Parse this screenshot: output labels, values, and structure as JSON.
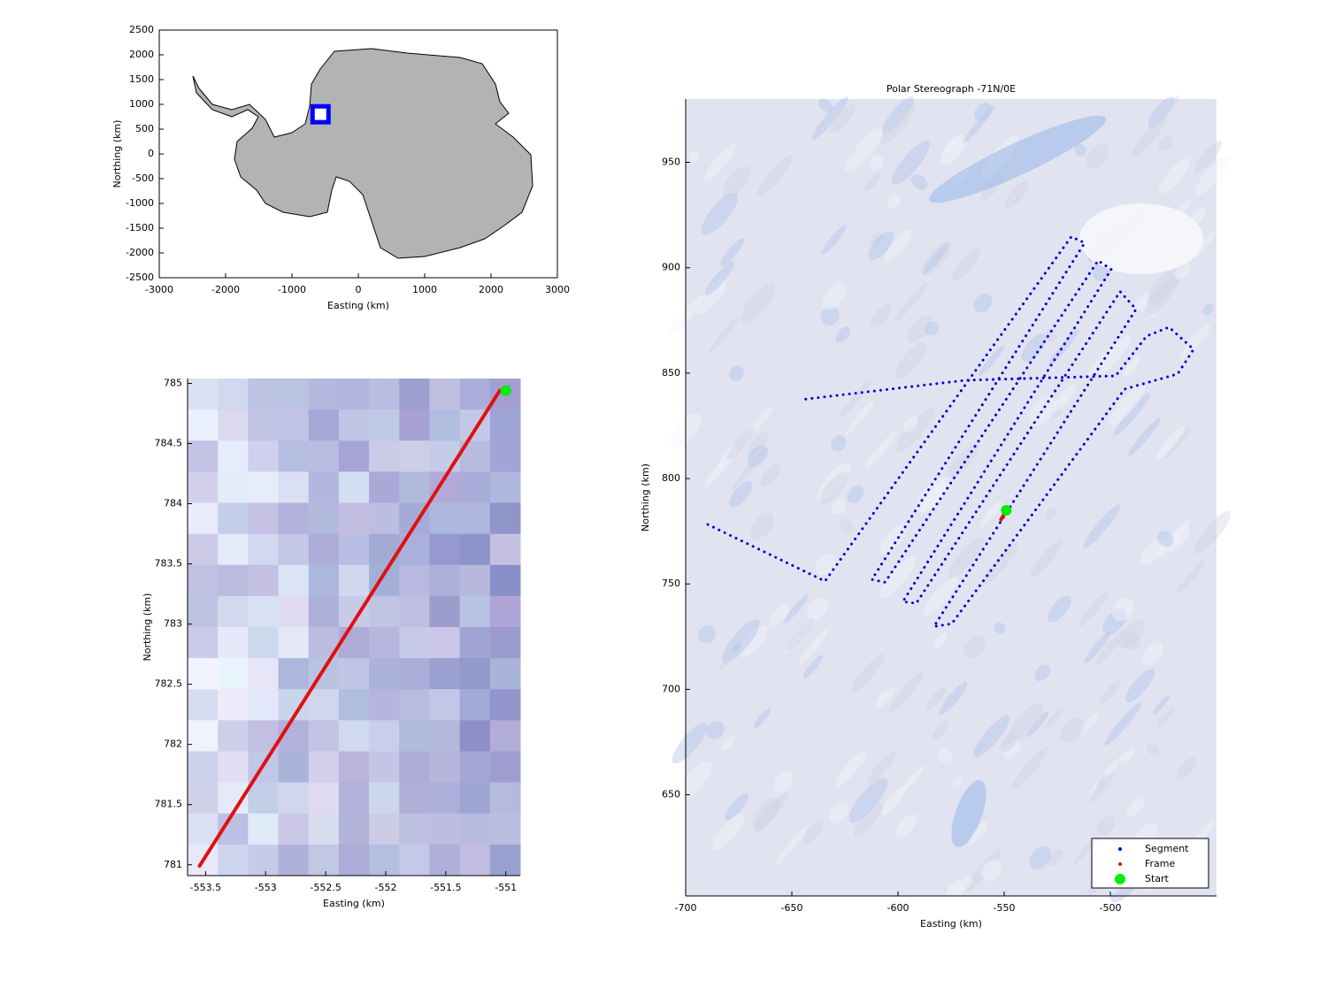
{
  "chart_data": [
    {
      "type": "map",
      "xlabel": "Easting (km)",
      "ylabel": "Northing (km)",
      "xlim": [
        -3000,
        3000
      ],
      "xticks": [
        -3000,
        -2000,
        -1000,
        0,
        1000,
        2000,
        3000
      ],
      "ylim": [
        -2500,
        2500
      ],
      "yticks": [
        -2500,
        -2000,
        -1500,
        -1000,
        -500,
        0,
        500,
        1000,
        1500,
        2000,
        2500
      ],
      "series": [
        {
          "color": "#0000ff",
          "style": "square",
          "x": [
            -570
          ],
          "values": [
            800
          ]
        }
      ]
    },
    {
      "type": "line",
      "xlabel": "Easting (km)",
      "ylabel": "Northing (km)",
      "xlim": [
        -553.65,
        -550.88
      ],
      "xticks": [
        -553.5,
        -553,
        -552.5,
        -552,
        -551.5,
        -551
      ],
      "ylim": [
        780.91,
        785.04
      ],
      "yticks": [
        781,
        781.5,
        782,
        782.5,
        783,
        783.5,
        784,
        784.5,
        785
      ],
      "series": [
        {
          "color": "#e01010",
          "style": "line",
          "x": [
            -553.55,
            -551.05
          ],
          "values": [
            780.99,
            784.94
          ]
        },
        {
          "color": "#00ee00",
          "style": "marker",
          "x": [
            -551.0
          ],
          "values": [
            784.94
          ]
        }
      ]
    },
    {
      "type": "line",
      "title": "Polar Stereograph -71N/0E",
      "xlabel": "Easting (km)",
      "ylabel": "Northing (km)",
      "xlim": [
        -700,
        -450
      ],
      "xticks": [
        -700,
        -650,
        -600,
        -550,
        -500
      ],
      "ylim": [
        602,
        980
      ],
      "yticks": [
        650,
        700,
        750,
        800,
        850,
        900,
        950
      ],
      "legend": "southeast",
      "series": [
        {
          "name": "Segment",
          "color": "#0000cc",
          "style": "dots",
          "x": [
            -689.6,
            -634.4,
            -518.4,
            -512.1,
            -612.3,
            -606.1,
            -505.8,
            -499.6,
            -597.7,
            -591.4,
            -495.4,
            -487.9,
            -583.1,
            -574.7,
            -493.3,
            -468.3,
            -460.8,
            -472.4,
            -482.9,
            -497.5,
            -568.5,
            -645.7
          ],
          "values": [
            778.2,
            751.3,
            914.7,
            911.8,
            752.1,
            750.8,
            903.4,
            899.2,
            741.6,
            740.8,
            888.7,
            880.3,
            729.8,
            731.1,
            842.4,
            849.6,
            861.3,
            871.8,
            867.6,
            848.7,
            846.6,
            837.4
          ]
        },
        {
          "name": "Frame",
          "color": "#e01010",
          "style": "line",
          "x": [
            -551.5,
            -549.5
          ],
          "values": [
            780.5,
            784.0
          ]
        },
        {
          "name": "Start",
          "color": "#00ee00",
          "style": "marker",
          "x": [
            -549.0
          ],
          "values": [
            784.9
          ]
        }
      ]
    }
  ]
}
